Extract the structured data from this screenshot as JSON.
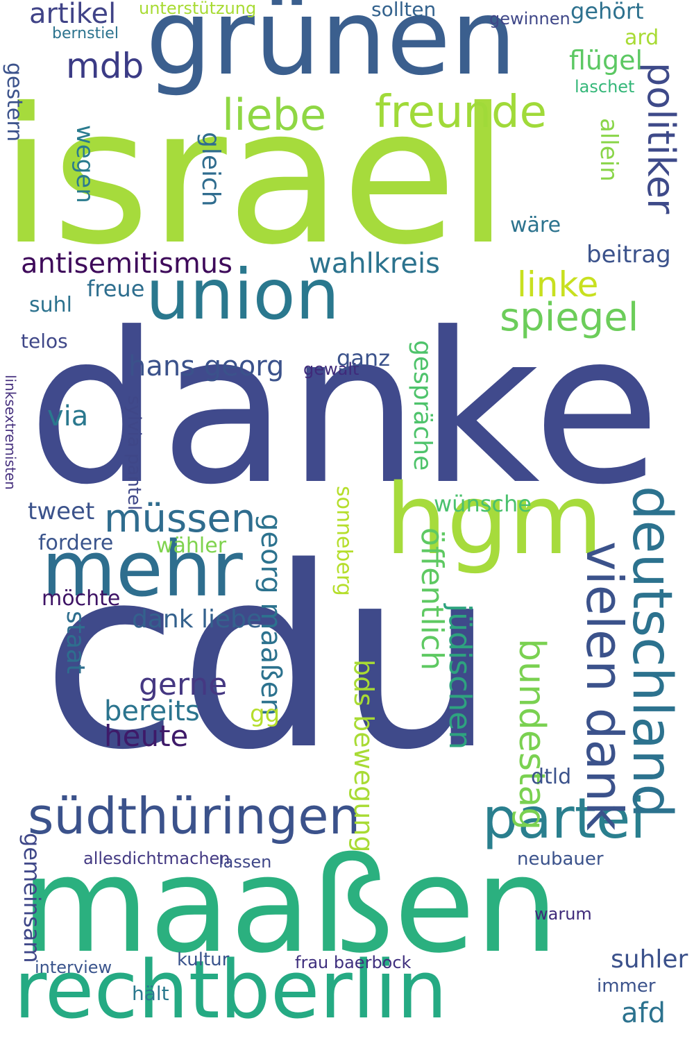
{
  "wordcloud": {
    "background": "#ffffff",
    "words": [
      {
        "text": "danke",
        "color": "#404a8c"
      },
      {
        "text": "cdu",
        "color": "#3f4a8a"
      },
      {
        "text": "israel",
        "color": "#a6db3c"
      },
      {
        "text": "maaßen",
        "color": "#2bb07f"
      },
      {
        "text": "grünen",
        "color": "#3b5f8e"
      },
      {
        "text": "rechtberlin",
        "color": "#25aa83"
      },
      {
        "text": "hgm",
        "color": "#a6db3c"
      },
      {
        "text": "union",
        "color": "#2a788e"
      },
      {
        "text": "mehr",
        "color": "#2e6e8e"
      },
      {
        "text": "südthüringen",
        "color": "#3b528b"
      },
      {
        "text": "partei",
        "color": "#2a7f8e"
      },
      {
        "text": "deutschland",
        "color": "#2c728e"
      },
      {
        "text": "vielen dank",
        "color": "#3b528b"
      },
      {
        "text": "freunde",
        "color": "#a0da39"
      },
      {
        "text": "liebe",
        "color": "#8fd744"
      },
      {
        "text": "politiker",
        "color": "#3e4a89"
      },
      {
        "text": "spiegel",
        "color": "#6ccd5a"
      },
      {
        "text": "linke",
        "color": "#c8e020"
      },
      {
        "text": "müssen",
        "color": "#2f6c8e"
      },
      {
        "text": "bundestag",
        "color": "#7ad151"
      },
      {
        "text": "antisemitismus",
        "color": "#3e0a5a"
      },
      {
        "text": "wahlkreis",
        "color": "#2c738e"
      },
      {
        "text": "hans georg",
        "color": "#3b528b"
      },
      {
        "text": "heute",
        "color": "#3e1a69"
      },
      {
        "text": "mdb",
        "color": "#3b3b85"
      },
      {
        "text": "artikel",
        "color": "#404387"
      },
      {
        "text": "gerne",
        "color": "#453882"
      },
      {
        "text": "bereits",
        "color": "#2b748e"
      },
      {
        "text": "allesdichtmachen",
        "color": "#443a83"
      },
      {
        "text": "frau baerbock",
        "color": "#3f2f7e"
      },
      {
        "text": "interview",
        "color": "#3a548c"
      },
      {
        "text": "suhler",
        "color": "#3b518b"
      },
      {
        "text": "afd",
        "color": "#2c728e"
      },
      {
        "text": "beitrag",
        "color": "#3b528b"
      },
      {
        "text": "wünsche",
        "color": "#4ac16d"
      },
      {
        "text": "öffentlich",
        "color": "#5ec962"
      },
      {
        "text": "jüdischen",
        "color": "#2ea37f"
      },
      {
        "text": "bds bewegung",
        "color": "#a8db34"
      },
      {
        "text": "dank liebe",
        "color": "#34618d"
      },
      {
        "text": "möchte",
        "color": "#3e1365"
      },
      {
        "text": "wähler",
        "color": "#7fd34e"
      },
      {
        "text": "fordere",
        "color": "#3a548c"
      },
      {
        "text": "tweet",
        "color": "#3b528b"
      },
      {
        "text": "staat",
        "color": "#2e6e8e"
      },
      {
        "text": "gemeinsam",
        "color": "#3f4788"
      },
      {
        "text": "flügel",
        "color": "#5cc863"
      },
      {
        "text": "gehört",
        "color": "#2d718e"
      },
      {
        "text": "laschet",
        "color": "#35b779"
      },
      {
        "text": "sollten",
        "color": "#33628d"
      },
      {
        "text": "gewinnen",
        "color": "#3f4788"
      },
      {
        "text": "unterstützung",
        "color": "#a8db34"
      },
      {
        "text": "bernstiel",
        "color": "#2c738e"
      },
      {
        "text": "wäre",
        "color": "#2c738e"
      },
      {
        "text": "wegen",
        "color": "#2a7b8e"
      },
      {
        "text": "gleich",
        "color": "#2f6c8e"
      },
      {
        "text": "allein",
        "color": "#89d548"
      },
      {
        "text": "gewalt",
        "color": "#3f2a7a"
      },
      {
        "text": "ganz",
        "color": "#3b528b"
      },
      {
        "text": "gespräche",
        "color": "#4ec36b"
      },
      {
        "text": "sonneberg",
        "color": "#b5de2b"
      },
      {
        "text": "georg maaßen",
        "color": "#2c728e"
      },
      {
        "text": "gg",
        "color": "#b5de2b"
      },
      {
        "text": "freue",
        "color": "#2e6e8e"
      },
      {
        "text": "suhl",
        "color": "#2c728e"
      },
      {
        "text": "telos",
        "color": "#3f4788"
      },
      {
        "text": "via",
        "color": "#2a788e"
      },
      {
        "text": "sylvia pantel",
        "color": "#3f4788"
      },
      {
        "text": "linksextremisten",
        "color": "#46307e"
      },
      {
        "text": "neubauer",
        "color": "#3b528b"
      },
      {
        "text": "dtld",
        "color": "#3b528b"
      },
      {
        "text": "kultur",
        "color": "#3a548c"
      },
      {
        "text": "immer",
        "color": "#3b528b"
      },
      {
        "text": "hält",
        "color": "#2a788e"
      },
      {
        "text": "lassen",
        "color": "#3f4788"
      },
      {
        "text": "gestern",
        "color": "#3b528b"
      },
      {
        "text": "warum",
        "color": "#3f2a7a"
      },
      {
        "text": "ard",
        "color": "#a8db34"
      }
    ]
  }
}
